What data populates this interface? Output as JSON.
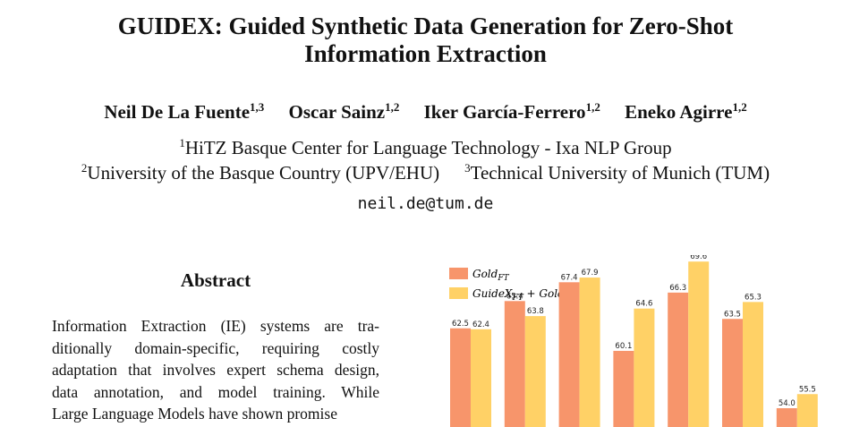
{
  "paper": {
    "title_prefix_big_g": "G",
    "title_prefix_small": "UIDE",
    "title_prefix_big_x": "X",
    "title_rest": ": Guided Synthetic Data Generation for Zero-Shot",
    "title_line2": "Information Extraction",
    "authors": [
      {
        "name": "Neil De La Fuente",
        "sup": "1,3"
      },
      {
        "name": "Oscar Sainz",
        "sup": "1,2"
      },
      {
        "name": "Iker García-Ferrero",
        "sup": "1,2"
      },
      {
        "name": "Eneko Agirre",
        "sup": "1,2"
      }
    ],
    "affiliations": [
      {
        "sup": "1",
        "name": "HiTZ Basque Center for Language Technology - Ixa NLP Group"
      },
      {
        "sup": "2",
        "name": "University of the Basque Country (UPV/EHU)"
      },
      {
        "sup": "3",
        "name": "Technical University of Munich (TUM)"
      }
    ],
    "email": "neil.de@tum.de",
    "abstract_heading": "Abstract",
    "abstract_lines": [
      "Information Extraction (IE) systems are tra-",
      "ditionally domain-specific, requiring costly",
      "adaptation that involves expert schema design,",
      "data annotation, and model training.  While",
      "Large Language Models have shown promise"
    ]
  },
  "chart_data": {
    "type": "bar",
    "categories": [
      "",
      "",
      "",
      "",
      "",
      "",
      ""
    ],
    "series": [
      {
        "name": "Gold_FT",
        "color": "#f7956b",
        "values": [
          62.5,
          65.4,
          67.4,
          60.1,
          66.3,
          63.5,
          54.0
        ]
      },
      {
        "name": "GuideX_FT + Gold_FT",
        "color": "#ffd166",
        "values": [
          62.4,
          63.8,
          67.9,
          64.6,
          69.6,
          65.3,
          55.5
        ]
      }
    ],
    "legend": [
      "Gold_FT",
      "GuideX_FT + Gold_FT"
    ],
    "legend_position": "top-left",
    "ylim": [
      52,
      72
    ],
    "grid": false
  }
}
